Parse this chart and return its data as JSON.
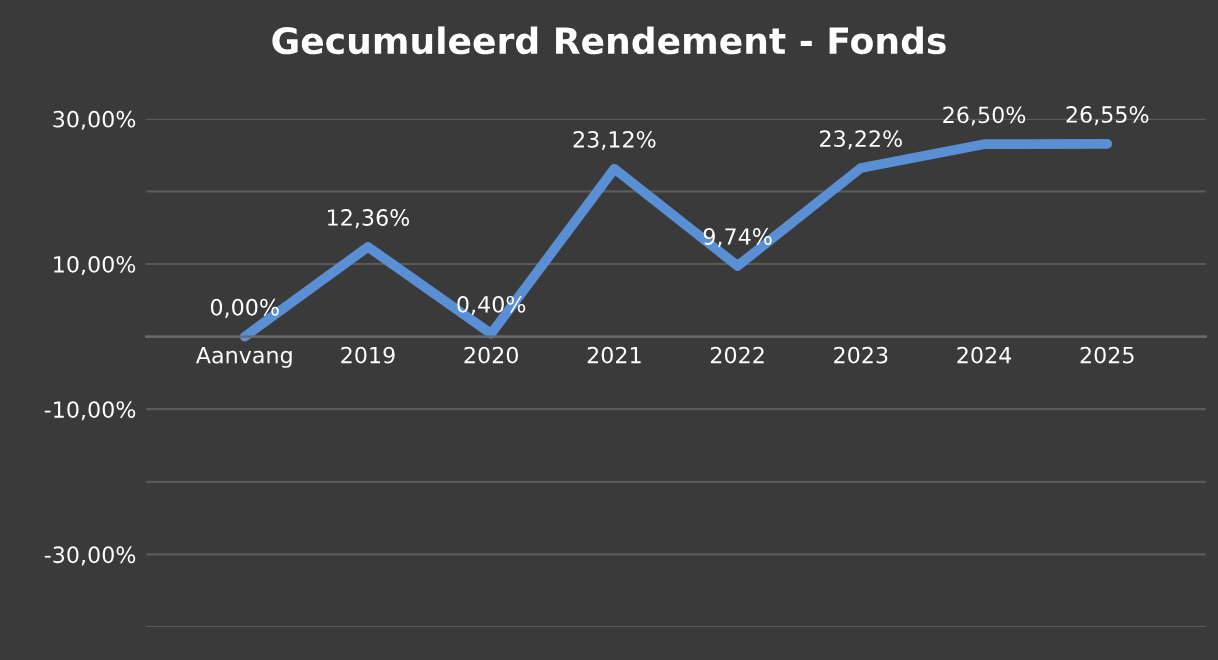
{
  "chart_data": {
    "type": "line",
    "title": "Gecumuleerd Rendement - Fonds",
    "categories": [
      "Aanvang",
      "2019",
      "2020",
      "2021",
      "2022",
      "2023",
      "2024",
      "2025"
    ],
    "series": [
      {
        "color": "#5b8fd4",
        "values": [
          0,
          12.36,
          0.4,
          23.12,
          9.74,
          23.22,
          26.5,
          26.55
        ]
      }
    ],
    "value_labels": [
      "0,00%",
      "12,36%",
      "0,40%",
      "23,12%",
      "9,74%",
      "23,22%",
      "26,50%",
      "26,55%"
    ],
    "ylim": [
      -40,
      30
    ],
    "yticks": [
      {
        "value": -40,
        "label": null
      },
      {
        "value": -30,
        "label": "-30,00%"
      },
      {
        "value": -20,
        "label": null
      },
      {
        "value": -10,
        "label": "-10,00%"
      },
      {
        "value": 0,
        "label": null
      },
      {
        "value": 10,
        "label": "10,00%"
      },
      {
        "value": 20,
        "label": null
      },
      {
        "value": 30,
        "label": "30,00%"
      }
    ],
    "grid": "y",
    "legend": false,
    "marker": "none",
    "line_style": "solid"
  }
}
